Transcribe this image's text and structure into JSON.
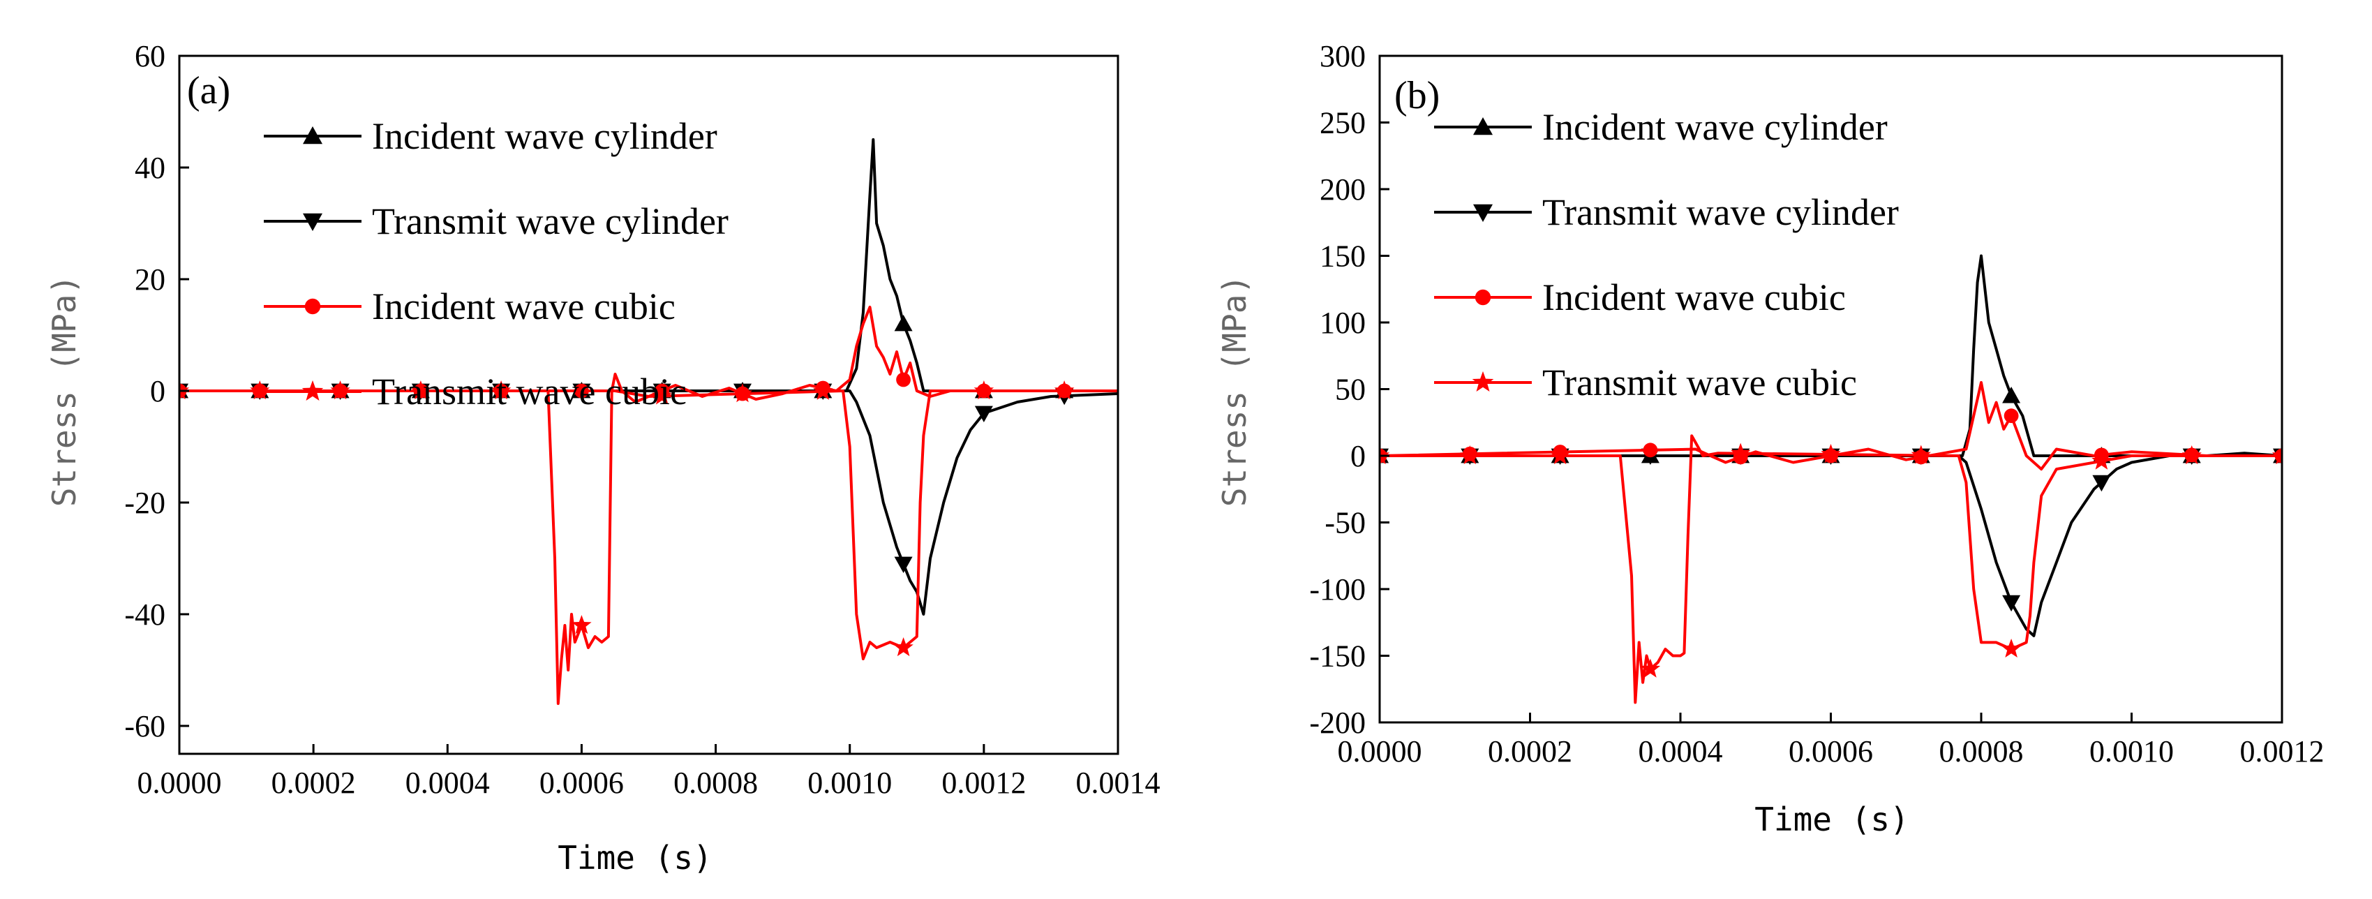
{
  "colors": {
    "cylinder": "#000000",
    "cubic": "#ff0000"
  },
  "chart_data": [
    {
      "type": "line",
      "panel_label": "(a)",
      "xlabel": "Time (s)",
      "ylabel": "Stress (MPa)",
      "xlim": [
        0,
        0.0014
      ],
      "ylim": [
        -65,
        60
      ],
      "xticks": [
        0,
        0.0002,
        0.0004,
        0.0006,
        0.0008,
        0.001,
        0.0012,
        0.0014
      ],
      "xtick_labels": [
        "0.0000",
        "0.0002",
        "0.0004",
        "0.0006",
        "0.0008",
        "0.0010",
        "0.0012",
        "0.0014"
      ],
      "yticks": [
        -60,
        -40,
        -20,
        0,
        20,
        40,
        60
      ],
      "ytick_labels": [
        "-60",
        "-40",
        "-20",
        "0",
        "20",
        "40",
        "60"
      ],
      "legend_position": "top-left",
      "series": [
        {
          "name": "Incident wave cylinder",
          "color": "#000000",
          "marker": "triangle-up",
          "x": [
            0,
            0.000995,
            0.00101,
            0.00102,
            0.00103,
            0.001035,
            0.00104,
            0.00105,
            0.00106,
            0.00107,
            0.00108,
            0.00109,
            0.0011,
            0.00111,
            0.00113,
            0.00116,
            0.0012,
            0.0013,
            0.0014
          ],
          "y": [
            0,
            0,
            4,
            14,
            35,
            45,
            30,
            26,
            20,
            17,
            12,
            9,
            5,
            0,
            0,
            0,
            0,
            0,
            0
          ]
        },
        {
          "name": "Transmit wave cylinder",
          "color": "#000000",
          "marker": "triangle-down",
          "x": [
            0,
            0.001,
            0.00101,
            0.00103,
            0.00105,
            0.00107,
            0.00109,
            0.0011,
            0.00111,
            0.00112,
            0.00114,
            0.00116,
            0.00118,
            0.0012,
            0.00125,
            0.0013,
            0.0014
          ],
          "y": [
            0,
            0,
            -2,
            -8,
            -20,
            -28,
            -34,
            -36,
            -40,
            -30,
            -20,
            -12,
            -7,
            -4,
            -2,
            -1,
            -0.5
          ]
        },
        {
          "name": "Incident wave cubic",
          "color": "#ff0000",
          "marker": "circle",
          "x": [
            0,
            0.00065,
            0.0007,
            0.00074,
            0.00078,
            0.00082,
            0.00086,
            0.0009,
            0.00094,
            0.00098,
            0.001,
            0.00101,
            0.00102,
            0.00103,
            0.00104,
            0.00105,
            0.00106,
            0.00107,
            0.00108,
            0.00109,
            0.0011,
            0.00112,
            0.00115,
            0.0012,
            0.0014
          ],
          "y": [
            0,
            0,
            -1,
            1,
            -1,
            0.5,
            -1.5,
            -0.5,
            1,
            0,
            2,
            8,
            12,
            15,
            8,
            6,
            3,
            7,
            2,
            5,
            0,
            -1,
            0,
            0,
            0
          ]
        },
        {
          "name": "Transmit wave cubic",
          "color": "#ff0000",
          "marker": "star",
          "x": [
            0,
            0.00055,
            0.00056,
            0.000565,
            0.00057,
            0.000575,
            0.00058,
            0.000585,
            0.00059,
            0.0006,
            0.00061,
            0.00062,
            0.00063,
            0.00064,
            0.000645,
            0.00065,
            0.00066,
            0.00068,
            0.0007,
            0.00099,
            0.001,
            0.00101,
            0.00102,
            0.00103,
            0.00104,
            0.00106,
            0.00108,
            0.0011,
            0.001105,
            0.00111,
            0.00112,
            0.0012,
            0.0014
          ],
          "y": [
            0,
            0,
            -30,
            -56,
            -48,
            -42,
            -50,
            -40,
            -45,
            -42,
            -46,
            -44,
            -45,
            -44,
            0,
            3,
            0,
            -2,
            -1,
            0,
            -10,
            -40,
            -48,
            -45,
            -46,
            -45,
            -46,
            -44,
            -20,
            -8,
            0,
            0,
            0
          ]
        }
      ]
    },
    {
      "type": "line",
      "panel_label": "(b)",
      "xlabel": "Time (s)",
      "ylabel": "Stress (MPa)",
      "xlim": [
        0,
        0.0012
      ],
      "ylim": [
        -200,
        300
      ],
      "xticks": [
        0,
        0.0002,
        0.0004,
        0.0006,
        0.0008,
        0.001,
        0.0012
      ],
      "xtick_labels": [
        "0.0000",
        "0.0002",
        "0.0004",
        "0.0006",
        "0.0008",
        "0.0010",
        "0.0012"
      ],
      "yticks": [
        -200,
        -150,
        -100,
        -50,
        0,
        50,
        100,
        150,
        200,
        250,
        300
      ],
      "ytick_labels": [
        "-200",
        "-150",
        "-100",
        "-50",
        "0",
        "50",
        "100",
        "150",
        "200",
        "250",
        "300"
      ],
      "legend_position": "top-left",
      "series": [
        {
          "name": "Incident wave cylinder",
          "color": "#000000",
          "marker": "triangle-up",
          "x": [
            0,
            0.000775,
            0.000785,
            0.00079,
            0.000795,
            0.0008,
            0.00081,
            0.00082,
            0.00083,
            0.00084,
            0.000855,
            0.00087,
            0.00088,
            0.0009,
            0.0012
          ],
          "y": [
            0,
            0,
            20,
            80,
            130,
            150,
            100,
            80,
            60,
            45,
            30,
            0,
            0,
            0,
            0
          ]
        },
        {
          "name": "Transmit wave cylinder",
          "color": "#000000",
          "marker": "triangle-down",
          "x": [
            0,
            0.00077,
            0.00078,
            0.0008,
            0.00082,
            0.00084,
            0.000855,
            0.00086,
            0.00087,
            0.00088,
            0.0009,
            0.00092,
            0.00095,
            0.00098,
            0.001,
            0.00105,
            0.0011,
            0.00115,
            0.0012
          ],
          "y": [
            0,
            0,
            -5,
            -40,
            -80,
            -110,
            -125,
            -130,
            -135,
            -110,
            -80,
            -50,
            -25,
            -10,
            -5,
            0,
            0,
            2,
            0
          ]
        },
        {
          "name": "Incident wave cubic",
          "color": "#ff0000",
          "marker": "circle",
          "x": [
            0,
            0.00042,
            0.00046,
            0.0005,
            0.00055,
            0.0006,
            0.00065,
            0.0007,
            0.00075,
            0.00078,
            0.00079,
            0.0008,
            0.00081,
            0.00082,
            0.00083,
            0.00084,
            0.00085,
            0.00086,
            0.00088,
            0.0009,
            0.00095,
            0.001,
            0.0011,
            0.0012
          ],
          "y": [
            0,
            5,
            -5,
            3,
            -5,
            0,
            5,
            -3,
            2,
            5,
            30,
            55,
            25,
            40,
            20,
            30,
            15,
            0,
            -10,
            5,
            0,
            3,
            0,
            0
          ]
        },
        {
          "name": "Transmit wave cubic",
          "color": "#ff0000",
          "marker": "star",
          "x": [
            0,
            0.00032,
            0.000335,
            0.00034,
            0.000345,
            0.00035,
            0.000355,
            0.00036,
            0.00037,
            0.00038,
            0.00039,
            0.0004,
            0.000405,
            0.00041,
            0.000415,
            0.00042,
            0.00043,
            0.00045,
            0.00077,
            0.00078,
            0.00079,
            0.0008,
            0.00082,
            0.00084,
            0.00086,
            0.000865,
            0.00087,
            0.00088,
            0.0009,
            0.001,
            0.0012
          ],
          "y": [
            0,
            0,
            -90,
            -185,
            -140,
            -170,
            -150,
            -160,
            -155,
            -145,
            -150,
            -150,
            -148,
            -60,
            15,
            10,
            0,
            2,
            0,
            -20,
            -100,
            -140,
            -140,
            -145,
            -140,
            -120,
            -80,
            -30,
            -10,
            0,
            0
          ]
        }
      ]
    }
  ]
}
